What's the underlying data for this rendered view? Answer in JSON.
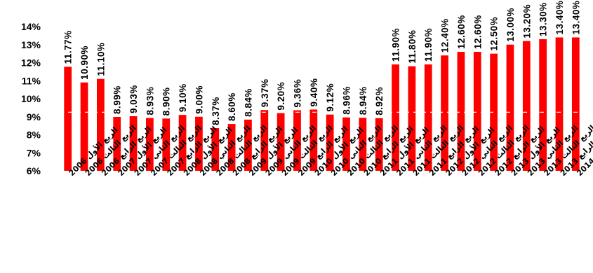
{
  "chart_data": {
    "type": "bar",
    "title": "",
    "xlabel": "",
    "ylabel": "",
    "ylim": [
      6,
      14
    ],
    "yticks": [
      "6%",
      "7%",
      "8%",
      "9%",
      "10%",
      "11%",
      "12%",
      "13%",
      "14%"
    ],
    "colors": {
      "bar": "#ff0000",
      "reference_line": "#ffffff"
    },
    "reference_line_value": 9.25,
    "categories": [
      "الربع الأول 2006",
      "الربع الثالث 2006",
      "الربع الرابع 2006",
      "الربع الأول 2007",
      "الربع الثاني 2007",
      "الربع الثالث 2007",
      "الربع الرابع 2007",
      "الربع الأول 2008",
      "الربع الثاني 2008",
      "الربع الثالث 2008",
      "الربع الرابع 2008",
      "الربع الأول 2009",
      "الربع الثاني 2009",
      "الربع الثالث 2009",
      "الربع الرابع 2009",
      "الربع الأول 2010",
      "الربع الثاني 2010",
      "الربع الثالث 2010",
      "الربع الرابع 2010",
      "الربع الأول 2011",
      "الربع الثاني 2011",
      "الربع الثالث 2011",
      "الربع الرابع 2011",
      "الربع الأول 2012",
      "الربع الثاني 2012",
      "الربع الثالث 2012",
      "الربع الرابع 2012",
      "الربع الأول 2013",
      "الربع الثاني 2013",
      "الربع الثالث 2013",
      "الربع الرابع 2013",
      "الربع الأول 2014"
    ],
    "values": [
      11.77,
      10.9,
      11.1,
      8.99,
      9.03,
      8.93,
      8.9,
      9.1,
      9.0,
      8.37,
      8.6,
      8.84,
      9.37,
      9.2,
      9.36,
      9.4,
      9.12,
      8.96,
      8.94,
      8.92,
      11.9,
      11.8,
      11.9,
      12.4,
      12.6,
      12.6,
      12.5,
      13.0,
      13.2,
      13.3,
      13.4,
      13.4
    ],
    "labels": [
      "11.77%",
      "10.90%",
      "11.10%",
      "8.99%",
      "9.03%",
      "8.93%",
      "8.90%",
      "9.10%",
      "9.00%",
      "8.37%",
      "8.60%",
      "8.84%",
      "9.37%",
      "9.20%",
      "9.36%",
      "9.40%",
      "9.12%",
      "8.96%",
      "8.94%",
      "8.92%",
      "11.90%",
      "11.80%",
      "11.90%",
      "12.40%",
      "12.60%",
      "12.60%",
      "12.50%",
      "13.00%",
      "13.20%",
      "13.30%",
      "13.40%",
      "13.40%"
    ]
  }
}
